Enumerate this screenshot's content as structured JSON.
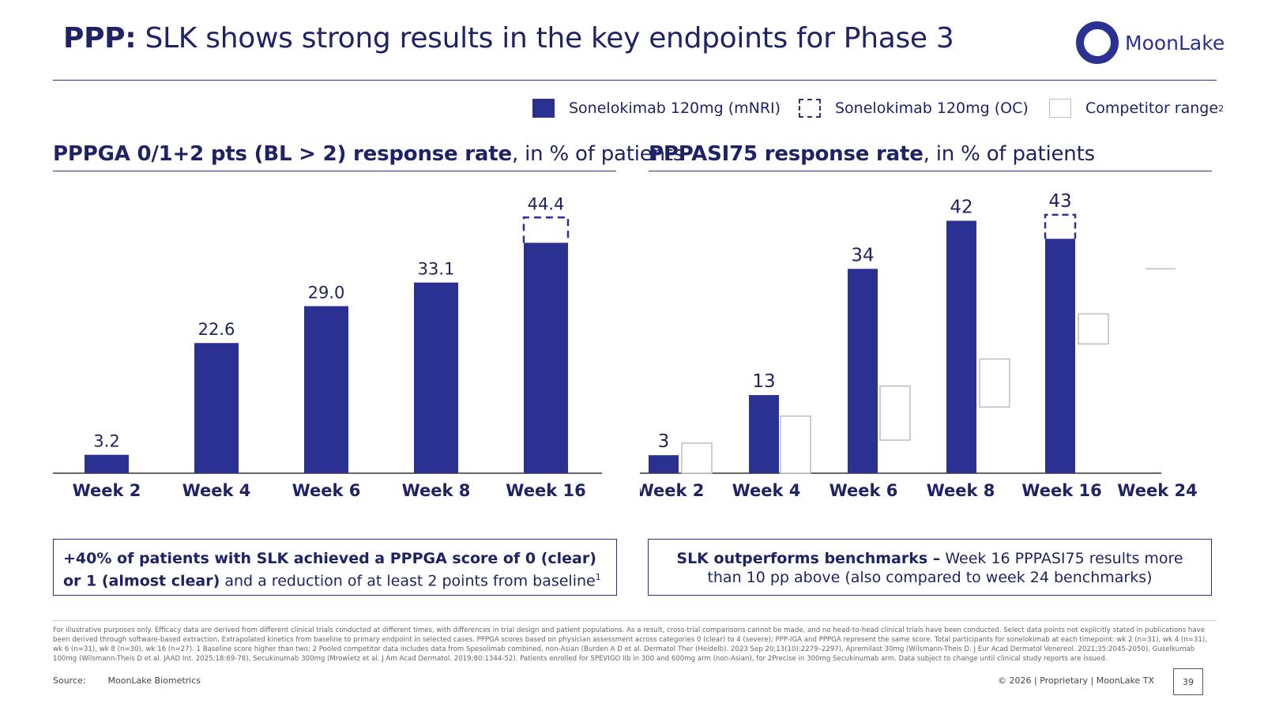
{
  "header": {
    "title_bold": "PPP:",
    "title_rest": " SLK shows strong results in the key endpoints for Phase 3",
    "logo_text": "MoonLake"
  },
  "legend": {
    "items": [
      {
        "label": "Sonelokimab 120mg (mNRI)",
        "style": "solid"
      },
      {
        "label": "Sonelokimab 120mg (OC)",
        "style": "dashed"
      },
      {
        "label": "Competitor range",
        "sup": "2",
        "style": "outline"
      }
    ]
  },
  "left_chart": {
    "title_bold": "PPPGA 0/1+2 pts (BL > 2) response rate",
    "title_rest": ", in % of patients"
  },
  "right_chart": {
    "title_bold": "PPPASI75 response rate",
    "title_rest": ", in % of patients"
  },
  "chart_data": [
    {
      "type": "bar",
      "title": "PPPGA 0/1+2 pts (BL > 2) response rate, in % of patients",
      "categories": [
        "Week 2",
        "Week 4",
        "Week 6",
        "Week 8",
        "Week 16"
      ],
      "series": [
        {
          "name": "Sonelokimab 120mg (mNRI)",
          "values": [
            3.2,
            22.6,
            29.0,
            33.1,
            40.0
          ]
        },
        {
          "name": "Sonelokimab 120mg (OC)",
          "values": [
            null,
            null,
            null,
            null,
            44.4
          ]
        }
      ],
      "data_labels": [
        "3.2",
        "22.6",
        "29.0",
        "33.1",
        "44.4"
      ],
      "ylim": [
        0,
        48
      ]
    },
    {
      "type": "bar",
      "title": "PPPASI75 response rate, in % of patients",
      "categories": [
        "Week 2",
        "Week 4",
        "Week 6",
        "Week 8",
        "Week 16",
        "Week 24"
      ],
      "series": [
        {
          "name": "Sonelokimab 120mg (mNRI)",
          "values": [
            3,
            13,
            34,
            42,
            39,
            null
          ]
        },
        {
          "name": "Sonelokimab 120mg (OC)",
          "values": [
            null,
            null,
            null,
            null,
            43,
            null
          ]
        },
        {
          "name": "Competitor range",
          "ranges": [
            [
              0,
              5
            ],
            [
              0,
              9.5
            ],
            [
              5.5,
              14.5
            ],
            [
              11,
              19
            ],
            [
              21.5,
              26.5
            ],
            [
              34,
              34
            ]
          ]
        }
      ],
      "data_labels": [
        "3",
        "13",
        "34",
        "42",
        "43",
        ""
      ],
      "ylim": [
        0,
        46
      ]
    }
  ],
  "callouts": {
    "left_bold": "+40% of patients with SLK achieved a PPPGA score of 0 (clear) or 1 (almost clear)",
    "left_rest": " and a reduction of at least 2 points from baseline",
    "left_sup": "1",
    "right_bold": "SLK outperforms benchmarks –",
    "right_rest": " Week 16 PPPASI75 results more than 10 pp above (also compared to week 24 benchmarks)"
  },
  "footer": {
    "disclaimer": "For illustrative purposes only. Efficacy data are derived from different clinical trials conducted at different times, with differences in trial design and patient populations. As a result, cross-trial comparisons cannot be made, and no head-to-head clinical trials have been conducted. Select data points not explicitly stated in publications have been derived through software-based extraction. Extrapolated kinetics from baseline to primary endpoint in selected cases. PPPGA scores based on physician assessment across categories 0 (clear) to 4 (severe); PPP-IGA and PPPGA represent the same score. Total participants for sonelokimab at each timepoint: wk 2 (n=31), wk 4 (n=31), wk 6 (n=31), wk 8 (n=30), wk 16 (n=27). 1 Baseline score higher than two; 2 Pooled competitor data includes data from Spesolimab combined, non-Asian (Burden A D et al. Dermatol Ther (Heidelb). 2023 Sep 20;13(10):2279–2297), Apremilast 30mg (Wilsmann-Theis D. J Eur Acad Dermatol Venereol. 2021;35:2045-2050), Guselkumab 100mg (Wilsmann-Theis D et al. JAAD Int. 2025;18:69-78), Secukinumab 300mg (Mrowietz et al. J Am Acad Dermatol. 2019;80:1344-52). Patients enrolled for SPEVIGO IIb in 300 and 600mg arm (non-Asian), for 2Precise in 300mg Secukinumab arm. Data subject to change until clinical study reports are issued.",
    "source_label": "Source:",
    "source_value": "MoonLake Biometrics",
    "copyright": "© 2026  |  Proprietary  |  MoonLake TX",
    "page_number": "39"
  },
  "colors": {
    "primary": "#2b3190",
    "title": "#1f2366",
    "competitor_outline": "#bdbdbd"
  }
}
